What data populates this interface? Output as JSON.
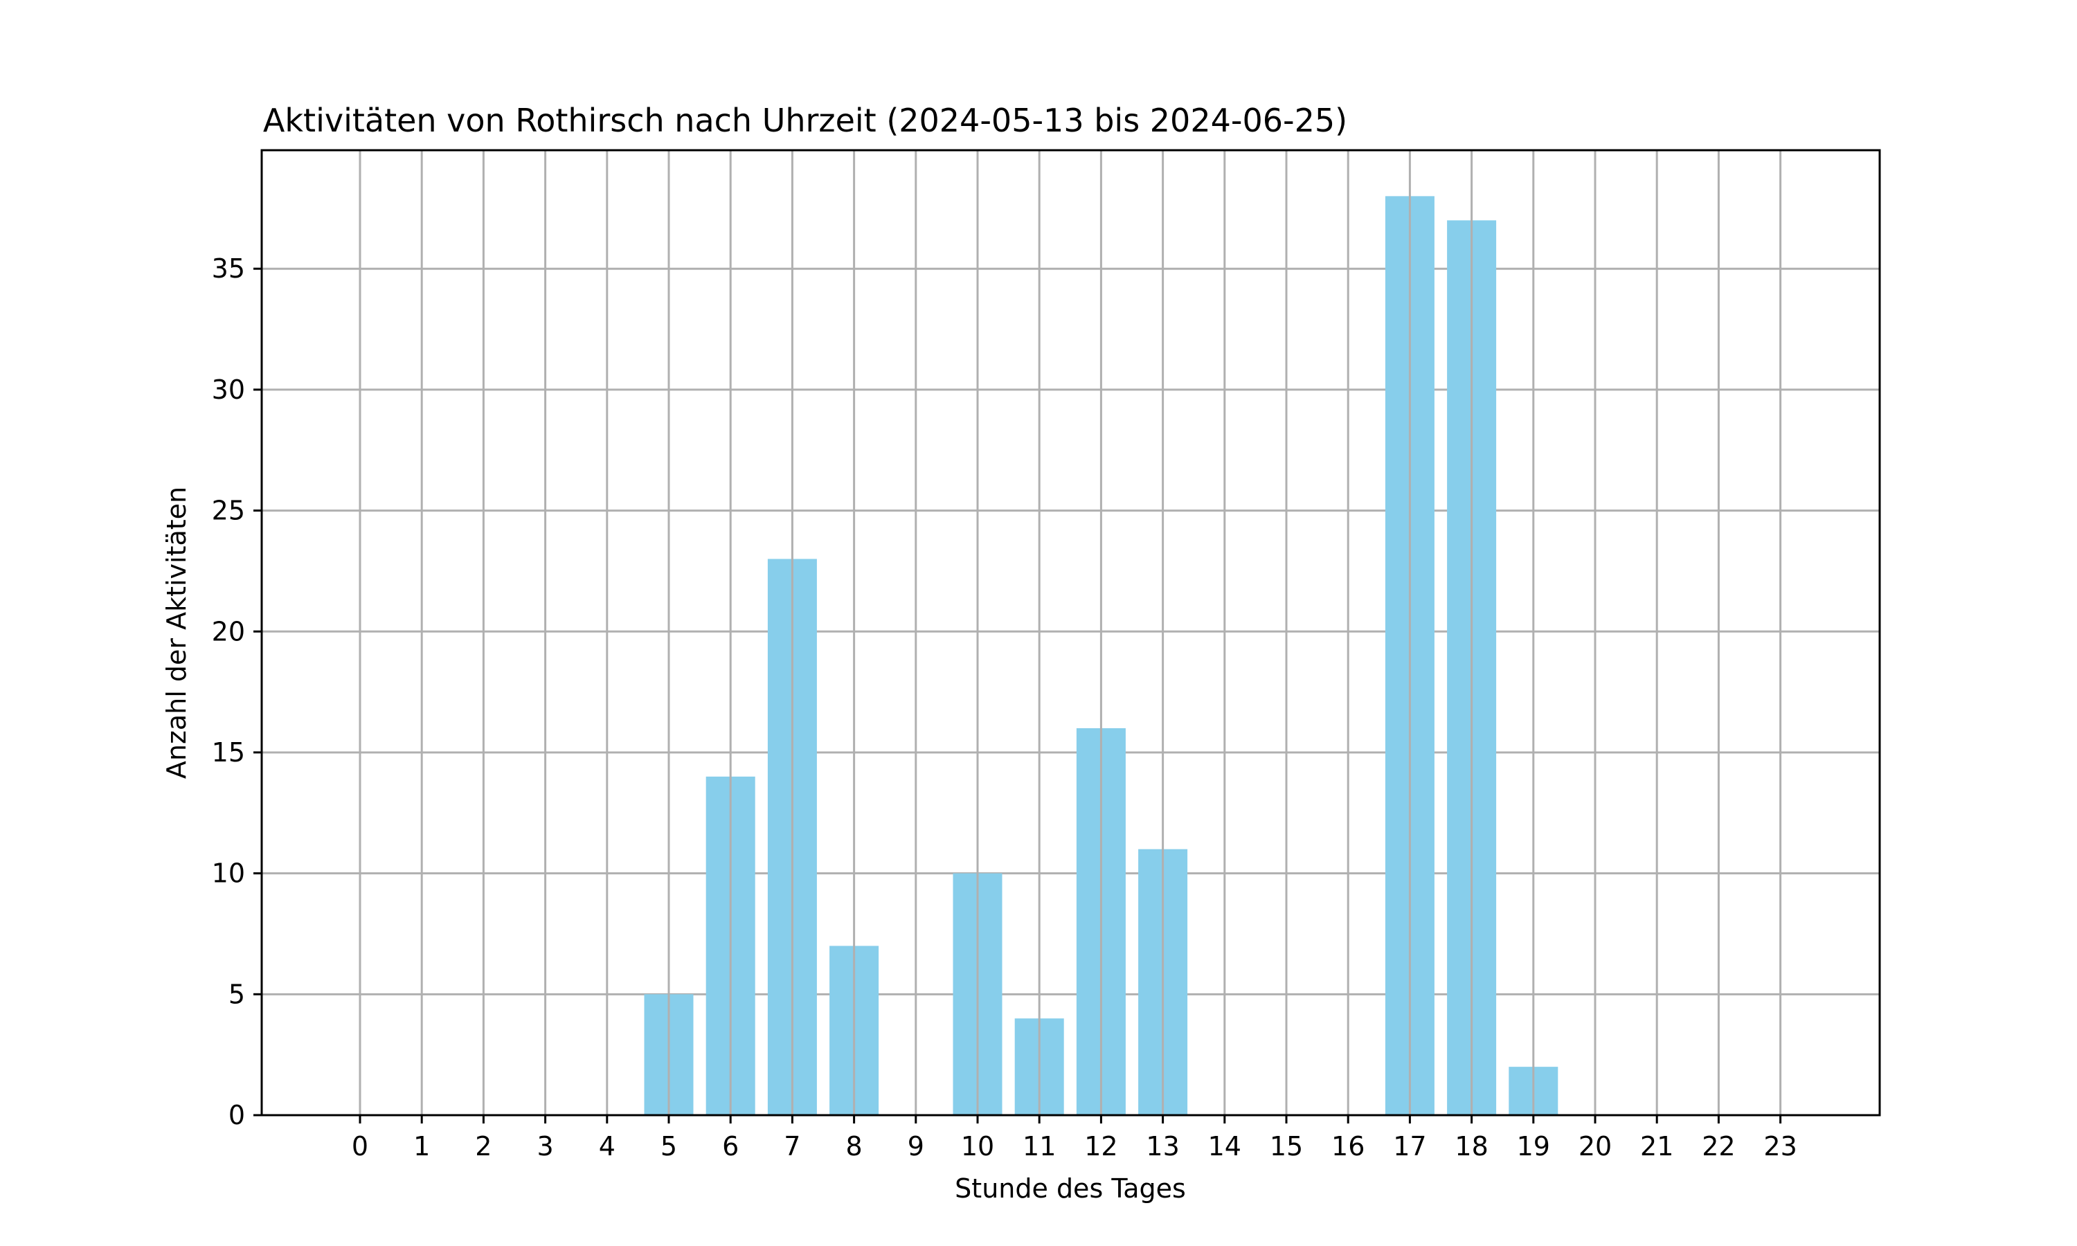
{
  "chart_data": {
    "type": "bar",
    "title": "Aktivitäten von Rothirsch nach Uhrzeit (2024-05-13 bis 2024-06-25)",
    "xlabel": "Stunde des Tages",
    "ylabel": "Anzahl der Aktivitäten",
    "categories": [
      "0",
      "1",
      "2",
      "3",
      "4",
      "5",
      "6",
      "7",
      "8",
      "9",
      "10",
      "11",
      "12",
      "13",
      "14",
      "15",
      "16",
      "17",
      "18",
      "19",
      "20",
      "21",
      "22",
      "23"
    ],
    "values": [
      0,
      0,
      0,
      0,
      0,
      5,
      14,
      23,
      7,
      0,
      10,
      4,
      16,
      11,
      0,
      0,
      0,
      38,
      37,
      2,
      0,
      0,
      0,
      0
    ],
    "ylim": [
      0,
      39.9
    ],
    "yticks": [
      0,
      5,
      10,
      15,
      20,
      25,
      30,
      35
    ],
    "grid": true,
    "legend": "none",
    "bar_color": "#87ceeb",
    "grid_color": "#b0b0b0"
  }
}
